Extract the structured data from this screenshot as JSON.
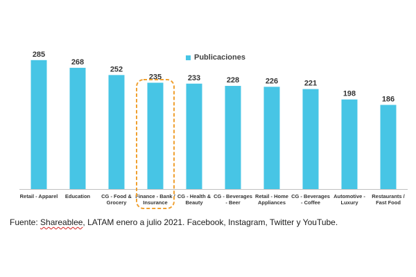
{
  "colors": {
    "bar": "#47c5e5",
    "highlight_outline": "#f0a030",
    "axis": "#bfbfbf",
    "text": "#333333"
  },
  "chart_data": {
    "type": "bar",
    "categories": [
      [
        "Retail - Apparel"
      ],
      [
        "Education"
      ],
      [
        "CG - Food &",
        "Grocery"
      ],
      [
        "Finance - Bank /",
        "Insurance"
      ],
      [
        "CG - Health &",
        "Beauty"
      ],
      [
        "CG - Beverages",
        "- Beer"
      ],
      [
        "Retail - Home",
        "Appliances"
      ],
      [
        "CG - Beverages",
        "- Coffee"
      ],
      [
        "Automotive -",
        "Luxury"
      ],
      [
        "Restaurants /",
        "Fast Food"
      ]
    ],
    "series": [
      {
        "name": "Publicaciones",
        "values": [
          285,
          268,
          252,
          235,
          233,
          228,
          226,
          221,
          198,
          186
        ]
      }
    ],
    "ylim": [
      0,
      300
    ],
    "grid": false,
    "legend_position": "top-center",
    "highlighted_category_index": 3,
    "data_labels": true
  },
  "legend": {
    "label": "Publicaciones"
  },
  "source": {
    "prefix": "Fuente: ",
    "brand": "Shareablee",
    "suffix": ", LATAM enero a julio 2021. Facebook, Instagram, Twitter y YouTube."
  }
}
